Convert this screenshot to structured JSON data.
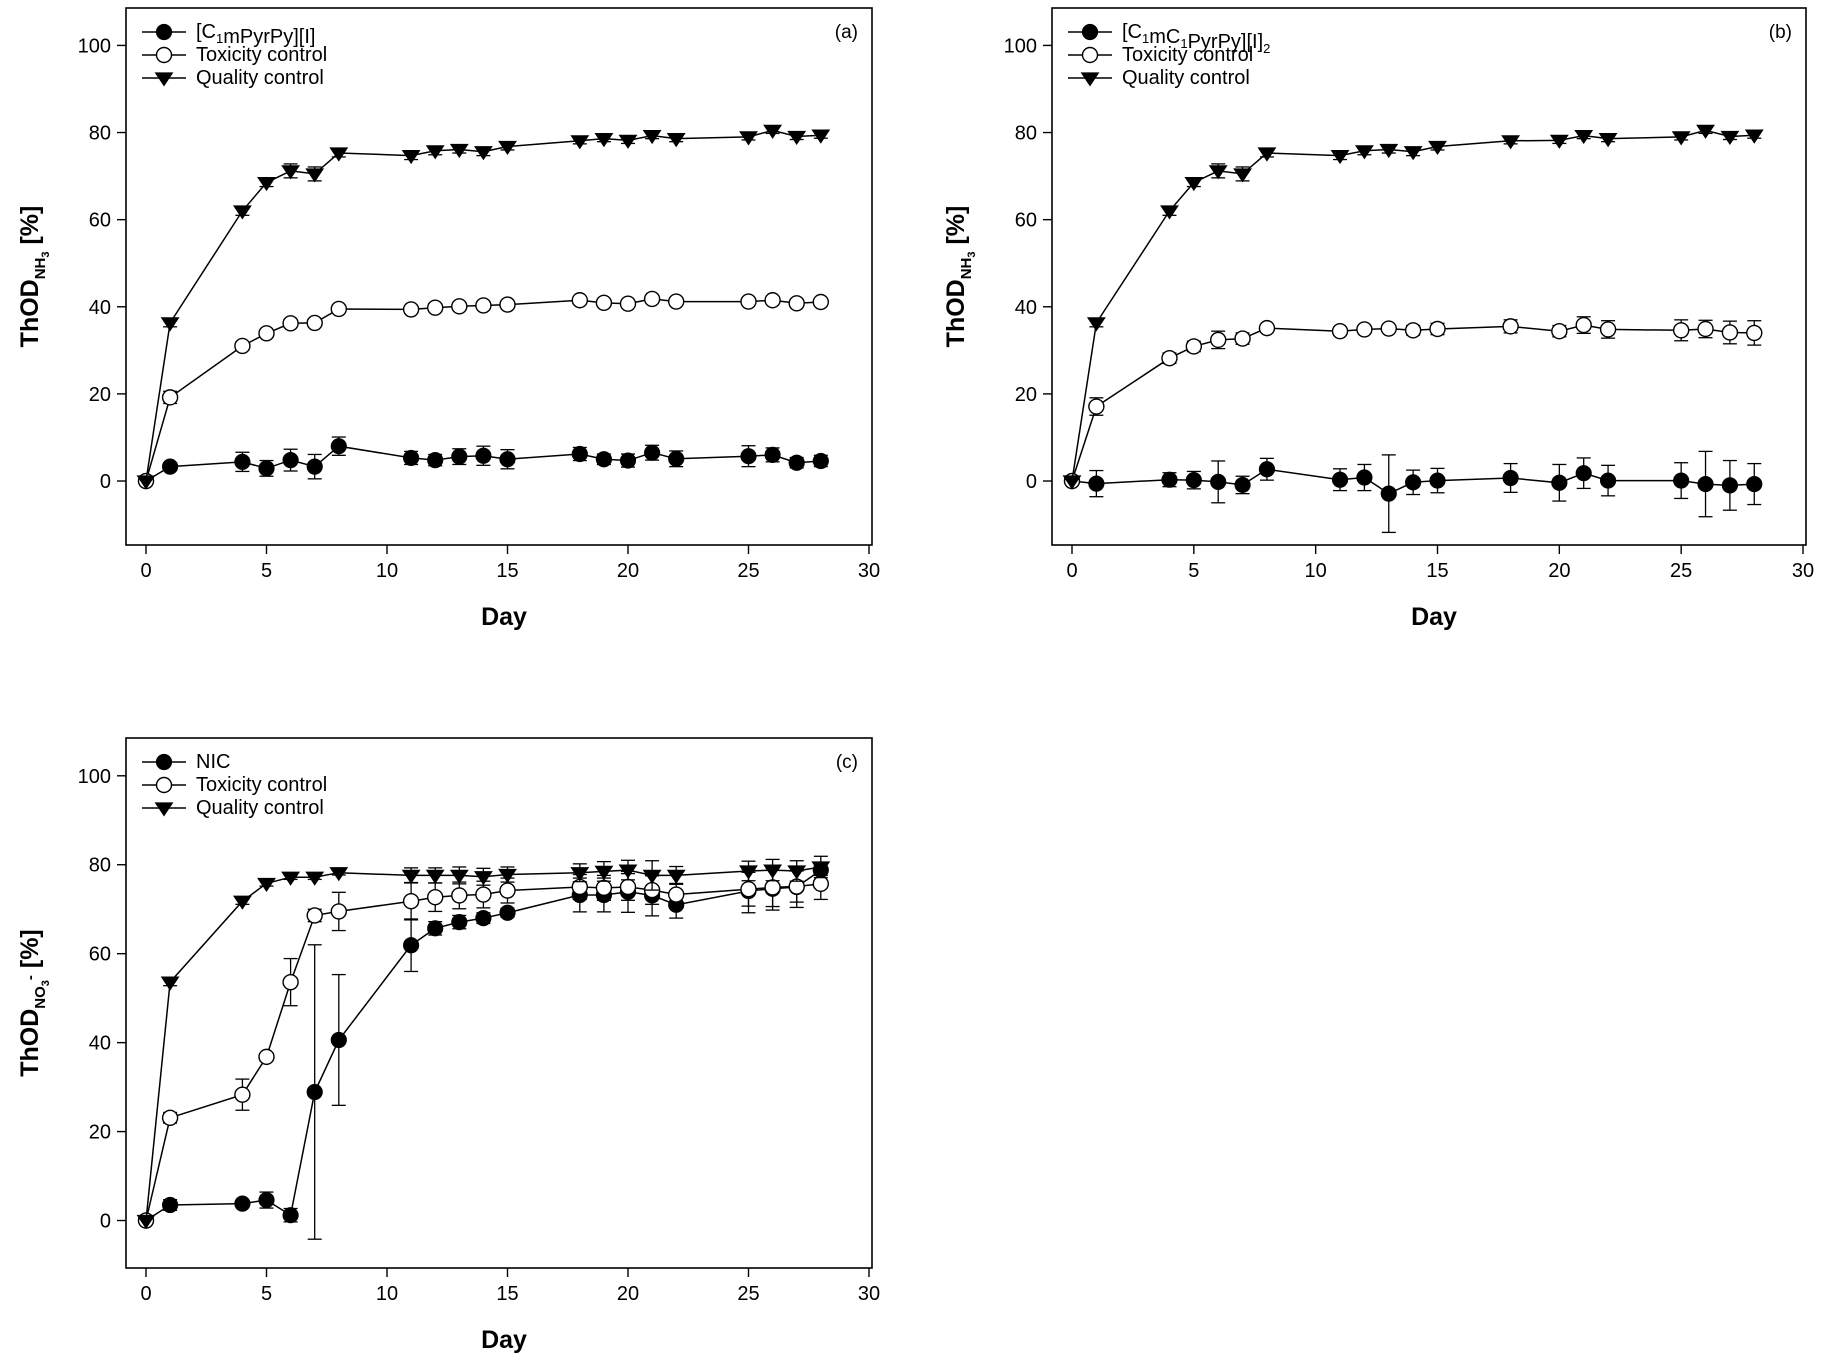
{
  "chart_data": [
    {
      "type": "line",
      "panel": "(a)",
      "xlabel": "Day",
      "ylabel": {
        "main": "ThOD",
        "sub": "NH",
        "sub2": "3",
        "unit": " [%]"
      },
      "xlim": [
        0,
        30
      ],
      "ylim": [
        -14,
        104
      ],
      "xticks": [
        0,
        5,
        10,
        15,
        20,
        25,
        30
      ],
      "yticks": [
        0,
        20,
        40,
        60,
        80,
        100
      ],
      "legend_position": "top-left",
      "series": [
        {
          "name": "[C1mPyrPy][I]",
          "legend": {
            "parts": [
              {
                "t": "[C"
              },
              {
                "t": "1",
                "sub": true
              },
              {
                "t": "mPyrPy][I]"
              }
            ]
          },
          "marker": "filled-circle",
          "x": [
            0,
            1,
            4,
            5,
            6,
            7,
            8,
            11,
            12,
            13,
            14,
            15,
            18,
            19,
            20,
            21,
            22,
            25,
            26,
            27,
            28
          ],
          "y": [
            0,
            3.3,
            4.4,
            2.9,
            4.8,
            3.3,
            8.0,
            5.3,
            4.8,
            5.6,
            5.8,
            5.0,
            6.2,
            5.0,
            4.7,
            6.5,
            5.1,
            5.7,
            6.0,
            4.2,
            4.6
          ],
          "err": [
            0,
            0.9,
            2.2,
            1.8,
            2.5,
            2.8,
            2.1,
            1.5,
            1.3,
            1.8,
            2.2,
            2.2,
            1.5,
            1.2,
            1.5,
            1.7,
            1.8,
            2.4,
            1.6,
            1.2,
            1.3
          ]
        },
        {
          "name": "Toxicity control",
          "legend": {
            "parts": [
              {
                "t": "Toxicity control"
              }
            ]
          },
          "marker": "open-circle",
          "x": [
            0,
            1,
            4,
            5,
            6,
            7,
            8,
            11,
            12,
            13,
            14,
            15,
            18,
            19,
            20,
            21,
            22,
            25,
            26,
            27,
            28
          ],
          "y": [
            0,
            19.2,
            31.0,
            33.9,
            36.2,
            36.3,
            39.5,
            39.4,
            39.8,
            40.1,
            40.3,
            40.5,
            41.5,
            40.9,
            40.7,
            41.8,
            41.2,
            41.2,
            41.5,
            40.8,
            41.1
          ],
          "err": [
            0,
            1.4,
            0.7,
            0.8,
            0.6,
            0.6,
            0.8,
            0.6,
            0.9,
            0.6,
            0.6,
            0.6,
            0.6,
            0.6,
            0.6,
            0.6,
            0.6,
            0.6,
            0.6,
            0.6,
            0.6
          ]
        },
        {
          "name": "Quality control",
          "legend": {
            "parts": [
              {
                "t": "Quality control"
              }
            ]
          },
          "marker": "filled-triangle-down",
          "x": [
            0,
            1,
            4,
            5,
            6,
            7,
            8,
            11,
            12,
            13,
            14,
            15,
            18,
            19,
            20,
            21,
            22,
            25,
            26,
            27,
            28
          ],
          "y": [
            0,
            36.3,
            62.0,
            68.5,
            71.2,
            70.5,
            75.3,
            74.7,
            75.8,
            76.1,
            75.6,
            76.8,
            78.1,
            78.6,
            78.2,
            79.3,
            78.6,
            79.0,
            80.5,
            79.1,
            79.4
          ],
          "err": [
            0,
            0.9,
            1.0,
            0.9,
            1.6,
            1.6,
            0.9,
            0.9,
            0.9,
            0.8,
            0.9,
            0.8,
            0.7,
            0.7,
            0.7,
            0.7,
            0.7,
            0.7,
            0.7,
            0.7,
            0.7
          ]
        }
      ]
    },
    {
      "type": "line",
      "panel": "(b)",
      "xlabel": "Day",
      "ylabel": {
        "main": "ThOD",
        "sub": "NH",
        "sub2": "3",
        "unit": " [%]"
      },
      "xlim": [
        0,
        30
      ],
      "ylim": [
        -14,
        104
      ],
      "xticks": [
        0,
        5,
        10,
        15,
        20,
        25,
        30
      ],
      "yticks": [
        0,
        20,
        40,
        60,
        80,
        100
      ],
      "legend_position": "top-left",
      "series": [
        {
          "name": "[C1mC1PyrPy][I]2",
          "legend": {
            "parts": [
              {
                "t": "[C"
              },
              {
                "t": "1",
                "sub": true
              },
              {
                "t": "mC"
              },
              {
                "t": "1",
                "sub": true
              },
              {
                "t": "PyrPy][I]"
              },
              {
                "t": "2",
                "sub": true
              }
            ]
          },
          "marker": "filled-circle",
          "x": [
            0,
            1,
            4,
            5,
            6,
            7,
            8,
            11,
            12,
            13,
            14,
            15,
            18,
            20,
            21,
            22,
            25,
            26,
            27,
            28
          ],
          "y": [
            0,
            -0.6,
            0.3,
            0.2,
            -0.2,
            -0.9,
            2.7,
            0.3,
            0.8,
            -2.9,
            -0.3,
            0.1,
            0.7,
            -0.4,
            1.8,
            0.1,
            0.1,
            -0.7,
            -1.0,
            -0.7
          ],
          "err": [
            0,
            3.0,
            1.6,
            2.0,
            4.8,
            2.0,
            2.5,
            2.5,
            3.0,
            8.9,
            2.8,
            2.8,
            3.3,
            4.2,
            3.5,
            3.5,
            4.1,
            7.5,
            5.7,
            4.7
          ]
        },
        {
          "name": "Toxicity control",
          "legend": {
            "parts": [
              {
                "t": "Toxicity control"
              }
            ]
          },
          "marker": "open-circle",
          "x": [
            0,
            1,
            4,
            5,
            6,
            7,
            8,
            11,
            12,
            13,
            14,
            15,
            18,
            20,
            21,
            22,
            25,
            26,
            27,
            28
          ],
          "y": [
            0,
            17.1,
            28.2,
            30.9,
            32.4,
            32.7,
            35.1,
            34.4,
            34.8,
            35.0,
            34.6,
            34.9,
            35.5,
            34.4,
            35.8,
            34.8,
            34.6,
            34.9,
            34.1,
            34.0
          ],
          "err": [
            0,
            2.0,
            1.2,
            1.2,
            2.0,
            1.3,
            0.7,
            0.9,
            0.8,
            0.7,
            1.1,
            1.3,
            1.5,
            1.3,
            1.9,
            2.0,
            2.4,
            2.0,
            2.6,
            2.8
          ]
        },
        {
          "name": "Quality control",
          "legend": {
            "parts": [
              {
                "t": "Quality control"
              }
            ]
          },
          "marker": "filled-triangle-down",
          "x": [
            0,
            1,
            4,
            5,
            6,
            7,
            8,
            11,
            12,
            13,
            14,
            15,
            18,
            20,
            21,
            22,
            25,
            26,
            27,
            28
          ],
          "y": [
            0,
            36.3,
            62.0,
            68.5,
            71.2,
            70.5,
            75.3,
            74.7,
            75.8,
            76.1,
            75.6,
            76.8,
            78.1,
            78.2,
            79.3,
            78.6,
            79.0,
            80.5,
            79.1,
            79.4
          ],
          "err": [
            0,
            0.9,
            1.0,
            0.9,
            1.6,
            1.6,
            0.9,
            0.9,
            0.9,
            0.8,
            0.9,
            0.8,
            0.7,
            0.7,
            0.7,
            0.7,
            0.7,
            0.7,
            0.7,
            0.7
          ]
        }
      ]
    },
    {
      "type": "line",
      "panel": "(c)",
      "xlabel": "Day",
      "ylabel": {
        "main": "ThOD",
        "sub": "NO",
        "sub2": "3",
        "sup": "-",
        "unit": " [%]"
      },
      "xlim": [
        0,
        30
      ],
      "ylim": [
        -10,
        104
      ],
      "xticks": [
        0,
        5,
        10,
        15,
        20,
        25,
        30
      ],
      "yticks": [
        0,
        20,
        40,
        60,
        80,
        100
      ],
      "legend_position": "top-left",
      "series": [
        {
          "name": "NIC",
          "legend": {
            "parts": [
              {
                "t": "NIC"
              }
            ]
          },
          "marker": "filled-circle",
          "x": [
            0,
            1,
            4,
            5,
            6,
            7,
            8,
            11,
            12,
            13,
            14,
            15,
            18,
            19,
            20,
            21,
            22,
            25,
            26,
            27,
            28
          ],
          "y": [
            0,
            3.5,
            3.8,
            4.6,
            1.2,
            28.9,
            40.6,
            61.9,
            65.7,
            67.1,
            68.0,
            69.2,
            73.2,
            73.2,
            73.9,
            73.1,
            71.0,
            74.1,
            74.6,
            75.0,
            78.8
          ],
          "err": [
            0,
            1.2,
            0.7,
            1.8,
            1.5,
            33.1,
            14.7,
            5.9,
            1.5,
            1.5,
            1.2,
            1.0,
            3.8,
            3.8,
            4.6,
            4.6,
            3.0,
            4.9,
            4.8,
            4.6,
            1.2
          ]
        },
        {
          "name": "Toxicity control",
          "legend": {
            "parts": [
              {
                "t": "Toxicity control"
              }
            ]
          },
          "marker": "open-circle",
          "x": [
            0,
            1,
            4,
            5,
            6,
            7,
            8,
            11,
            12,
            13,
            14,
            15,
            18,
            19,
            20,
            21,
            22,
            25,
            26,
            27,
            28
          ],
          "y": [
            0,
            23.1,
            28.3,
            36.8,
            53.6,
            68.6,
            69.5,
            71.8,
            72.7,
            73.1,
            73.3,
            74.2,
            75.0,
            74.8,
            75.0,
            74.3,
            73.3,
            74.5,
            74.9,
            75.1,
            75.7
          ],
          "err": [
            0,
            1.2,
            3.5,
            0.9,
            5.3,
            1.4,
            4.3,
            4.2,
            3.2,
            3.0,
            3.0,
            2.8,
            2.8,
            2.8,
            3.0,
            3.2,
            2.5,
            3.8,
            4.3,
            3.5,
            3.5
          ]
        },
        {
          "name": "Quality control",
          "legend": {
            "parts": [
              {
                "t": "Quality control"
              }
            ]
          },
          "marker": "filled-triangle-down",
          "x": [
            0,
            1,
            4,
            5,
            6,
            7,
            8,
            11,
            12,
            13,
            14,
            15,
            18,
            19,
            20,
            21,
            22,
            25,
            26,
            27,
            28
          ],
          "y": [
            0,
            53.6,
            71.8,
            75.8,
            77.2,
            77.2,
            78.2,
            77.6,
            77.6,
            77.6,
            77.3,
            77.8,
            78.2,
            78.5,
            78.8,
            77.6,
            77.6,
            78.6,
            78.8,
            78.6,
            79.5
          ],
          "err": [
            0,
            0.8,
            0.7,
            0.6,
            0.5,
            0.5,
            0.5,
            1.7,
            1.7,
            1.9,
            1.9,
            1.7,
            2.0,
            2.2,
            2.2,
            3.3,
            2.0,
            2.2,
            2.4,
            2.3,
            2.4
          ]
        }
      ]
    }
  ]
}
